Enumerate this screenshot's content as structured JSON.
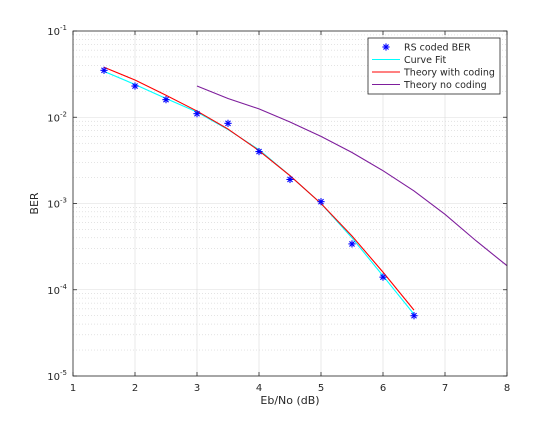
{
  "chart_data": {
    "type": "line",
    "xlabel": "Eb/No (dB)",
    "ylabel": "BER",
    "xlim": [
      1,
      8
    ],
    "ylim": [
      1e-05,
      0.1
    ],
    "yscale": "log",
    "grid": true,
    "minor_grid": true,
    "legend_position": "top-right",
    "x_ticks": [
      "1",
      "2",
      "3",
      "4",
      "5",
      "6",
      "7",
      "8"
    ],
    "y_ticks": [
      {
        "base": "10",
        "exp": "-5"
      },
      {
        "base": "10",
        "exp": "-4"
      },
      {
        "base": "10",
        "exp": "-3"
      },
      {
        "base": "10",
        "exp": "-2"
      },
      {
        "base": "10",
        "exp": "-1"
      }
    ],
    "series": [
      {
        "name": "RS coded BER",
        "style": "marker",
        "marker": "*",
        "color": "#0000ff",
        "x": [
          1.5,
          2.0,
          2.5,
          3.0,
          3.5,
          4.0,
          4.5,
          5.0,
          5.5,
          6.0,
          6.5
        ],
        "y": [
          0.035,
          0.023,
          0.016,
          0.011,
          0.0085,
          0.004,
          0.0019,
          0.00105,
          0.00034,
          0.00014,
          5e-05
        ]
      },
      {
        "name": "Curve Fit",
        "style": "line",
        "color": "#00ffff",
        "x": [
          1.5,
          2.0,
          2.5,
          3.0,
          3.5,
          4.0,
          4.5,
          5.0,
          5.5,
          6.0,
          6.5
        ],
        "y": [
          0.034,
          0.024,
          0.0165,
          0.0115,
          0.0072,
          0.0042,
          0.0021,
          0.001,
          0.0004,
          0.000145,
          5.2e-05
        ]
      },
      {
        "name": "Theory with coding",
        "style": "line",
        "color": "#ff0000",
        "x": [
          1.5,
          2.0,
          2.5,
          3.0,
          3.5,
          4.0,
          4.5,
          5.0,
          5.5,
          6.0,
          6.5
        ],
        "y": [
          0.038,
          0.027,
          0.018,
          0.0118,
          0.0073,
          0.0041,
          0.0021,
          0.001,
          0.00042,
          0.00016,
          5.8e-05
        ]
      },
      {
        "name": "Theory no coding",
        "style": "line",
        "color": "#7e1e9c",
        "x": [
          3.0,
          3.5,
          4.0,
          4.5,
          5.0,
          5.5,
          6.0,
          6.5,
          7.0,
          7.5,
          8.0
        ],
        "y": [
          0.023,
          0.0165,
          0.0125,
          0.0088,
          0.006,
          0.0039,
          0.0024,
          0.0014,
          0.00075,
          0.00037,
          0.00019
        ]
      }
    ]
  }
}
